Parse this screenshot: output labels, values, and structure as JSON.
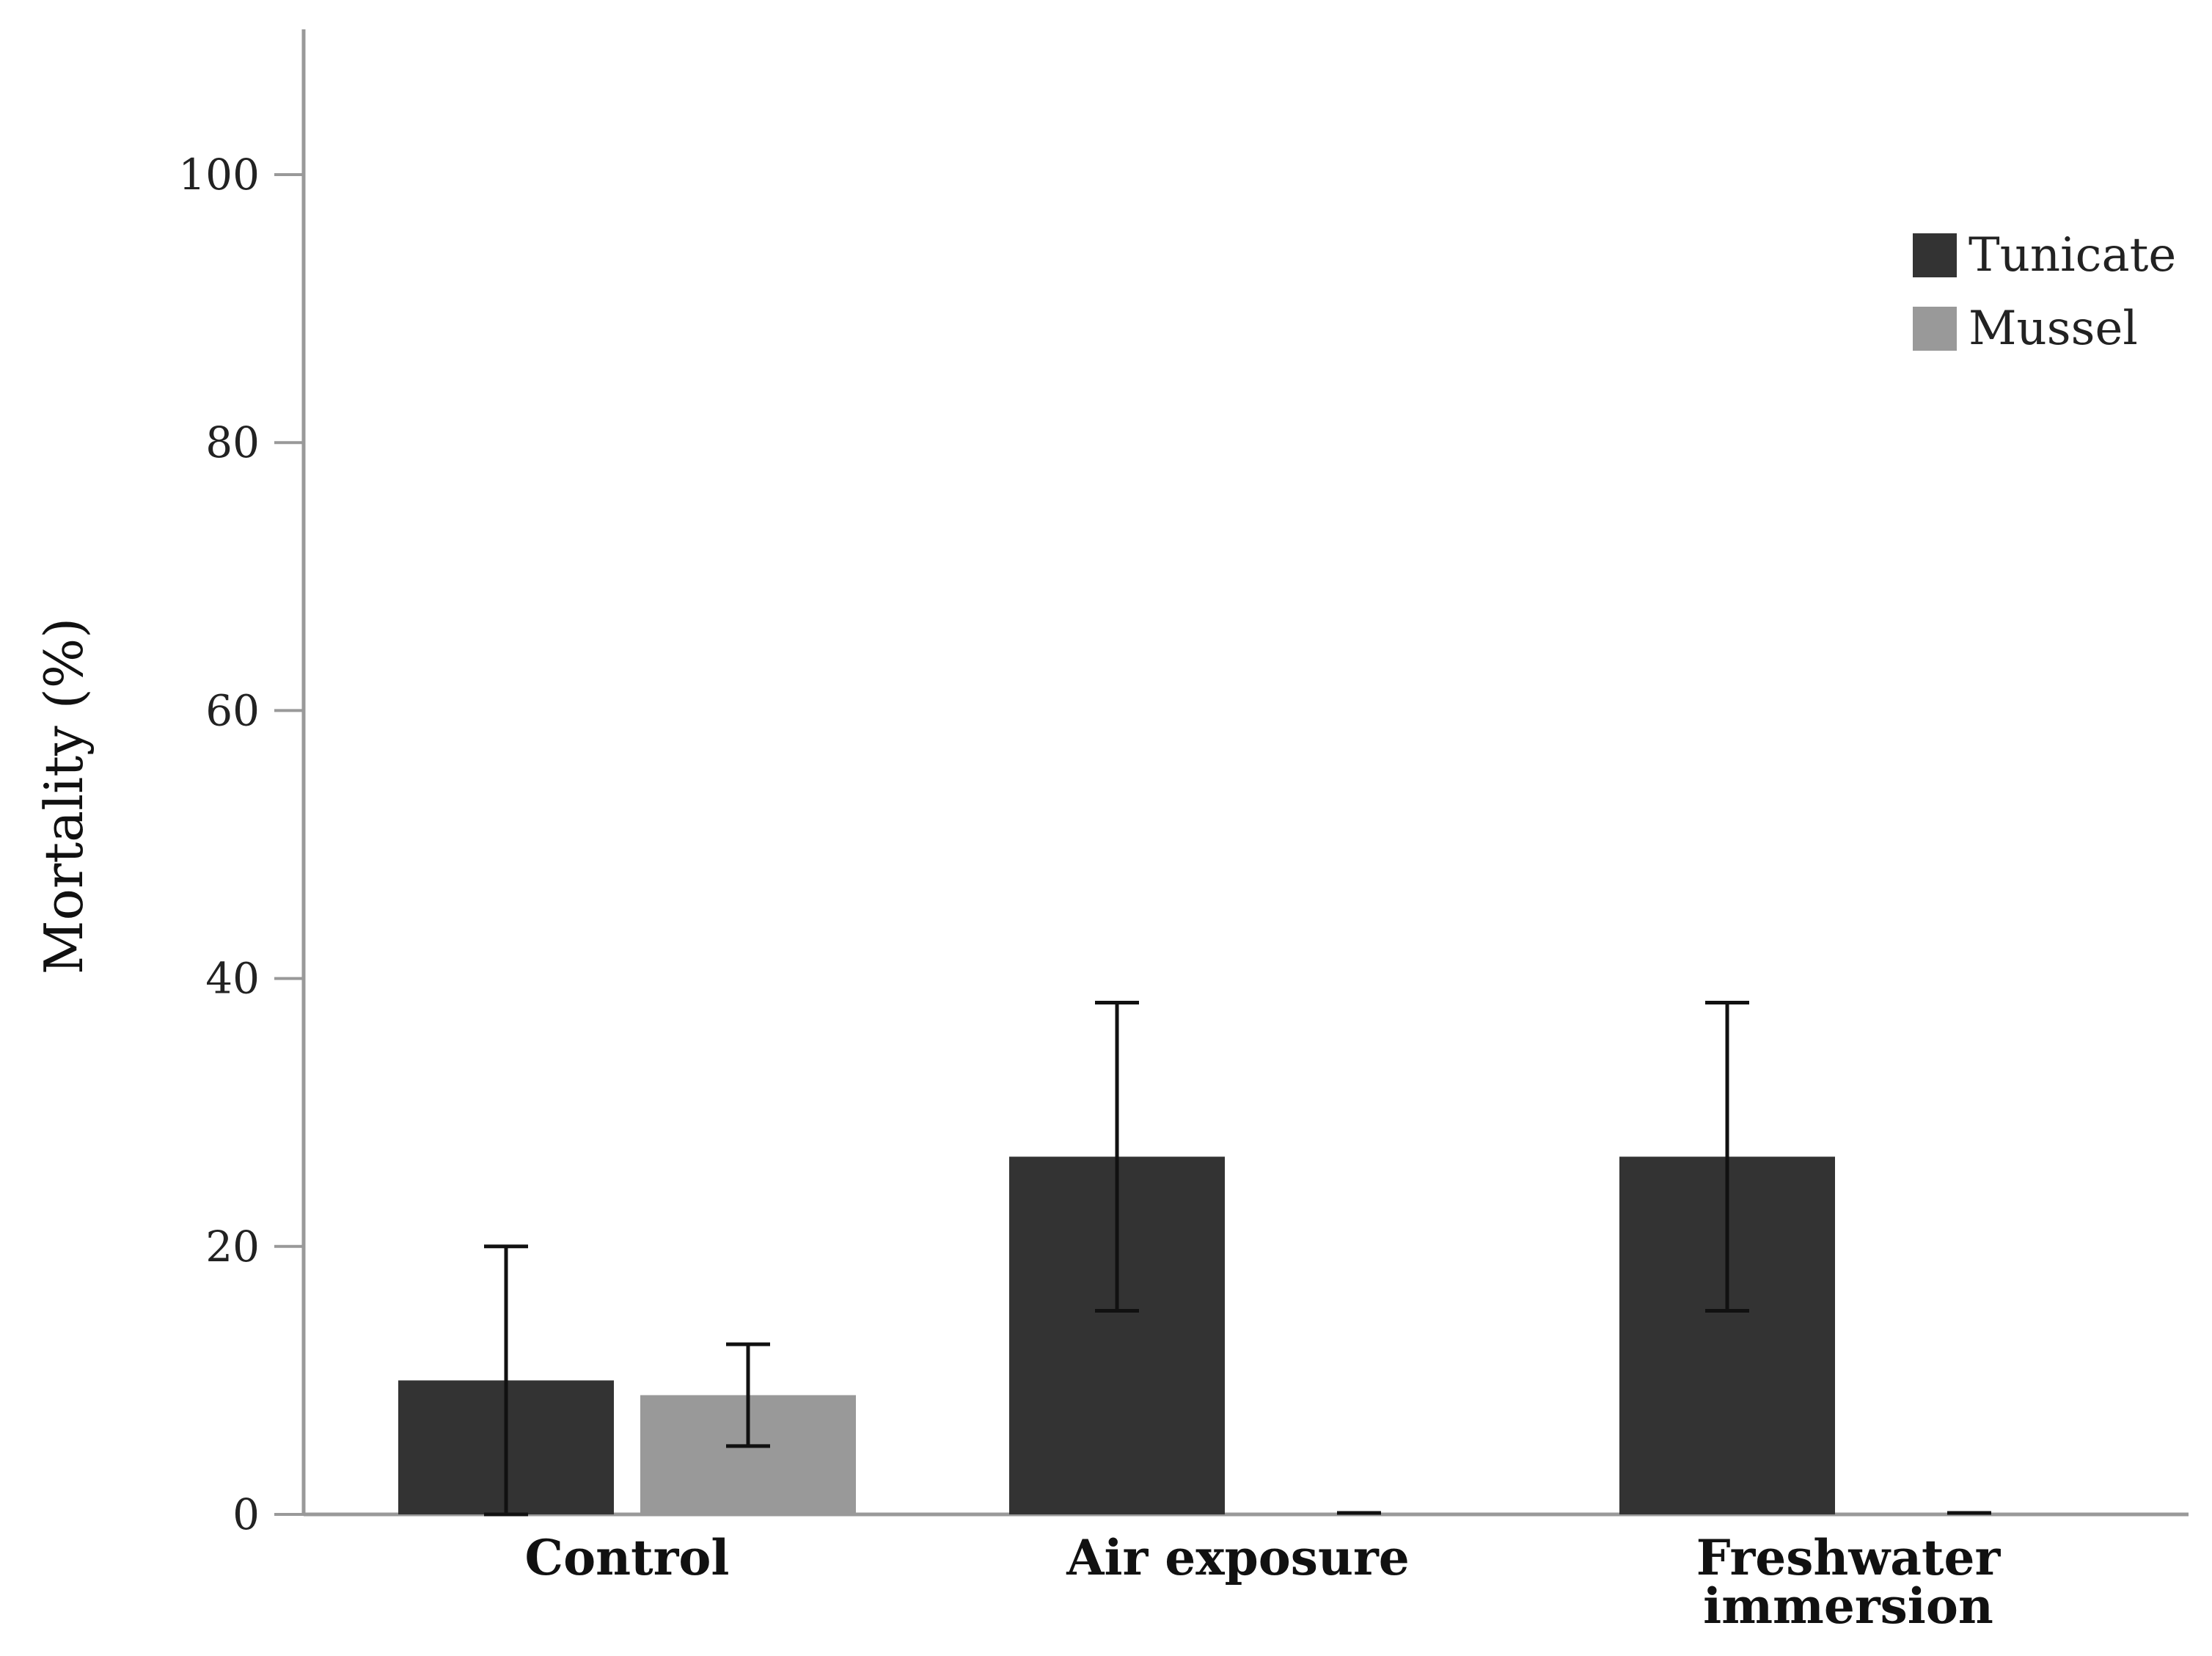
{
  "chart_data": {
    "type": "bar",
    "title": "",
    "xlabel": "",
    "ylabel": "Mortality (%)",
    "ylim": [
      0,
      110
    ],
    "yticks": [
      0,
      20,
      40,
      60,
      80,
      100
    ],
    "ytick_labels": [
      "0",
      "20",
      "40",
      "60",
      "80",
      "100"
    ],
    "categories": [
      [
        "Control"
      ],
      [
        "Air exposure"
      ],
      [
        "Freshwater",
        "immersion"
      ]
    ],
    "series": [
      {
        "name": "Tunicate",
        "color": "#333333",
        "values": [
          10,
          26.7,
          26.7
        ],
        "error_low": [
          0,
          15.2,
          15.2
        ],
        "error_high": [
          20,
          38.2,
          38.2
        ]
      },
      {
        "name": "Mussel",
        "color": "#999999",
        "values": [
          8.9,
          0,
          0
        ],
        "error_low": [
          5.1,
          0,
          0
        ],
        "error_high": [
          12.7,
          0,
          0
        ]
      }
    ],
    "legend": {
      "position": "top-right"
    },
    "grid": false,
    "axis_color": "#999999",
    "error_bar_color": "#111111"
  }
}
